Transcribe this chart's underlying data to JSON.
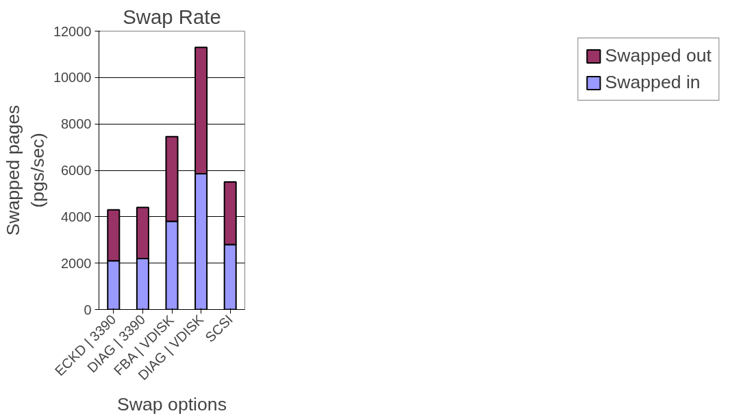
{
  "chart_data": {
    "type": "bar",
    "title": "Swap Rate",
    "xlabel": "Swap options",
    "ylabel": "Swapped pages\n(pgs/sec)",
    "categories": [
      "ECKD | 3390",
      "DIAG | 3390",
      "FBA | VDISK",
      "DIAG | VDISK",
      "SCSI"
    ],
    "stacked": true,
    "series": [
      {
        "name": "Swapped in",
        "color": "#9999ff",
        "values": [
          2100,
          2200,
          3800,
          5850,
          2800
        ]
      },
      {
        "name": "Swapped out",
        "color": "#993366",
        "values": [
          2200,
          2200,
          3650,
          5450,
          2700
        ]
      }
    ],
    "ylim": [
      0,
      12000
    ],
    "yticks": [
      0,
      2000,
      4000,
      6000,
      8000,
      10000,
      12000
    ],
    "grid": "y",
    "legend": "right"
  }
}
